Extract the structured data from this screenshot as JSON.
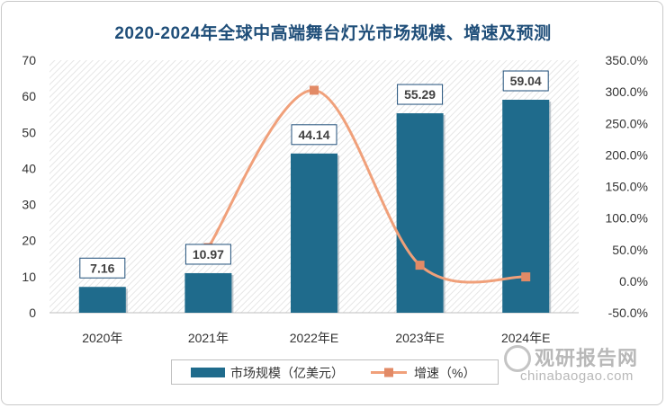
{
  "chart_data": {
    "type": "bar",
    "title": "2020-2024年全球中高端舞台灯光市场规模、增速及预测",
    "categories": [
      "2020年",
      "2021年",
      "2022年E",
      "2023年E",
      "2024年E"
    ],
    "series": [
      {
        "name": "市场规模（亿美元）",
        "type": "bar",
        "axis": "left",
        "values": [
          7.16,
          10.97,
          44.14,
          55.29,
          59.04
        ],
        "labels": [
          "7.16",
          "10.97",
          "44.14",
          "55.29",
          "59.04"
        ],
        "color": "#1f6b8c"
      },
      {
        "name": "增速（%）",
        "type": "line",
        "axis": "right",
        "values": [
          null,
          53.2,
          302.4,
          25.3,
          6.8
        ],
        "color": "#f0a07a"
      }
    ],
    "y_left": {
      "min": 0,
      "max": 70,
      "step": 10,
      "ticks": [
        "0",
        "10",
        "20",
        "30",
        "40",
        "50",
        "60",
        "70"
      ]
    },
    "y_right": {
      "min": -50,
      "max": 350,
      "step": 50,
      "ticks": [
        "-50.0%",
        "0.0%",
        "50.0%",
        "100.0%",
        "150.0%",
        "200.0%",
        "250.0%",
        "300.0%",
        "350.0%"
      ]
    },
    "legend": {
      "position": "bottom"
    },
    "grid": false
  },
  "watermark": {
    "cn": "观研报告网",
    "en": "chinabaogao.com"
  }
}
